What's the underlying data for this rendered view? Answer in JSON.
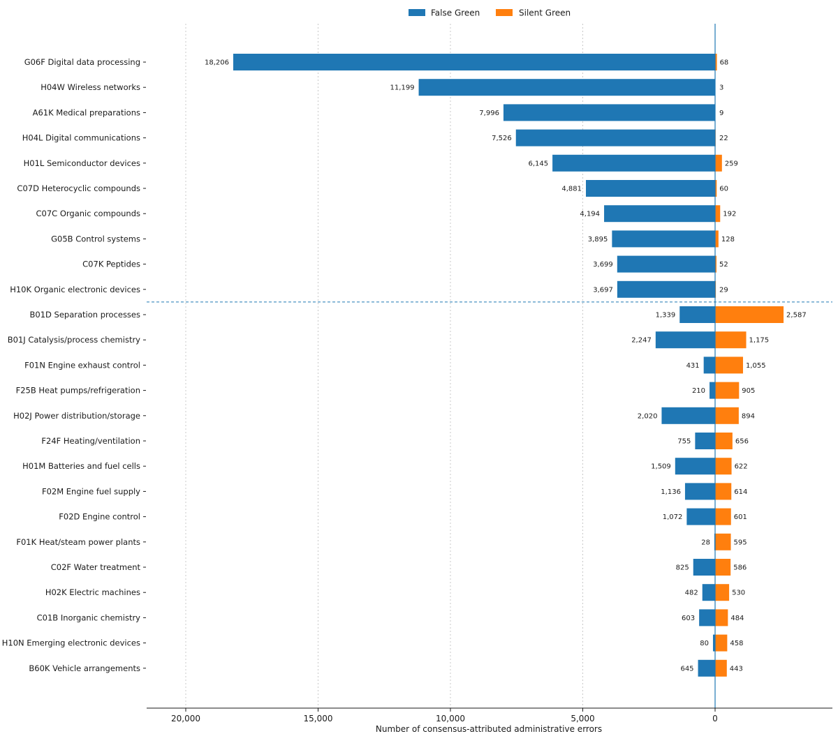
{
  "chart_data": {
    "type": "bar",
    "orientation": "horizontal",
    "diverging": true,
    "xlabel": "Number of consensus-attributed administrative errors",
    "xticks": [
      20000,
      15000,
      10000,
      5000,
      0
    ],
    "xtick_labels": [
      "20,000",
      "15,000",
      "10,000",
      "5,000",
      "0"
    ],
    "xlim": [
      21500,
      -4400
    ],
    "grid": "vertical dotted",
    "legend": "top-center",
    "categories": [
      "G06F  Digital data processing",
      "H04W  Wireless networks",
      "A61K  Medical preparations",
      "H04L  Digital communications",
      "H01L  Semiconductor devices",
      "C07D  Heterocyclic compounds",
      "C07C  Organic compounds",
      "G05B  Control systems",
      "C07K  Peptides",
      "H10K  Organic electronic devices",
      "B01D  Separation processes",
      "B01J  Catalysis/process chemistry",
      "F01N  Engine exhaust control",
      "F25B  Heat pumps/refrigeration",
      "H02J  Power distribution/storage",
      "F24F  Heating/ventilation",
      "H01M  Batteries and fuel cells",
      "F02M  Engine fuel supply",
      "F02D  Engine control",
      "F01K  Heat/steam power plants",
      "C02F  Water treatment",
      "H02K  Electric machines",
      "C01B  Inorganic chemistry",
      "H10N  Emerging electronic devices",
      "B60K  Vehicle arrangements"
    ],
    "separator_after_index": 9,
    "series": [
      {
        "name": "False Green",
        "color": "#1f77b4",
        "values": [
          18206,
          11199,
          7996,
          7526,
          6145,
          4881,
          4194,
          3895,
          3699,
          3697,
          1339,
          2247,
          431,
          210,
          2020,
          755,
          1509,
          1136,
          1072,
          28,
          825,
          482,
          603,
          80,
          645
        ],
        "labels": [
          "18,206",
          "11,199",
          "7,996",
          "7,526",
          "6,145",
          "4,881",
          "4,194",
          "3,895",
          "3,699",
          "3,697",
          "1,339",
          "2,247",
          "431",
          "210",
          "2,020",
          "755",
          "1,509",
          "1,136",
          "1,072",
          "28",
          "825",
          "482",
          "603",
          "80",
          "645"
        ]
      },
      {
        "name": "Silent Green",
        "color": "#ff7f0e",
        "values": [
          68,
          3,
          9,
          22,
          259,
          60,
          192,
          128,
          52,
          29,
          2587,
          1175,
          1055,
          905,
          894,
          656,
          622,
          614,
          601,
          595,
          586,
          530,
          484,
          458,
          443
        ],
        "labels": [
          "68",
          "3",
          "9",
          "22",
          "259",
          "60",
          "192",
          "128",
          "52",
          "29",
          "2,587",
          "1,175",
          "1,055",
          "905",
          "894",
          "656",
          "622",
          "614",
          "601",
          "595",
          "586",
          "530",
          "484",
          "458",
          "443"
        ]
      }
    ]
  }
}
